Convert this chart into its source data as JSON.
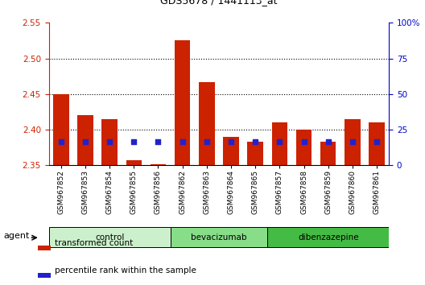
{
  "title": "GDS5678 / 1441113_at",
  "samples": [
    "GSM967852",
    "GSM967853",
    "GSM967854",
    "GSM967855",
    "GSM967856",
    "GSM967862",
    "GSM967863",
    "GSM967864",
    "GSM967865",
    "GSM967857",
    "GSM967858",
    "GSM967859",
    "GSM967860",
    "GSM967861"
  ],
  "transformed_count": [
    2.45,
    2.42,
    2.415,
    2.357,
    2.351,
    2.525,
    2.467,
    2.39,
    2.383,
    2.41,
    2.4,
    2.383,
    2.415,
    2.41
  ],
  "percentile_y": [
    2.383,
    2.383,
    2.383,
    2.383,
    2.383,
    2.383,
    2.383,
    2.383,
    2.383,
    2.383,
    2.383,
    2.383,
    2.383,
    2.383
  ],
  "groups": [
    {
      "name": "control",
      "indices": [
        0,
        1,
        2,
        3,
        4
      ]
    },
    {
      "name": "bevacizumab",
      "indices": [
        5,
        6,
        7,
        8
      ]
    },
    {
      "name": "dibenzazepine",
      "indices": [
        9,
        10,
        11,
        12,
        13
      ]
    }
  ],
  "group_colors": [
    "#ccf0cc",
    "#88dd88",
    "#44bb44"
  ],
  "bar_color": "#cc2200",
  "dot_color": "#2222cc",
  "ylim_left": [
    2.35,
    2.55
  ],
  "ylim_right": [
    0,
    100
  ],
  "yticks_left": [
    2.35,
    2.4,
    2.45,
    2.5,
    2.55
  ],
  "yticks_right": [
    0,
    25,
    50,
    75,
    100
  ],
  "bar_bottom": 2.35,
  "bar_width": 0.65,
  "legend_items": [
    {
      "label": "transformed count",
      "color": "#cc2200"
    },
    {
      "label": "percentile rank within the sample",
      "color": "#2222cc"
    }
  ],
  "agent_label": "agent",
  "left_axis_color": "#cc2200",
  "right_axis_color": "#0000cc",
  "grid_levels": [
    2.4,
    2.45,
    2.5
  ],
  "dot_size": 15
}
